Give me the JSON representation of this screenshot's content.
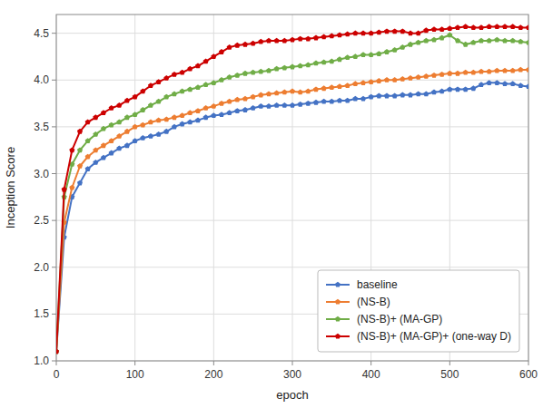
{
  "chart_data": {
    "type": "line",
    "xlabel": "epoch",
    "ylabel": "Inception Score",
    "x": [
      0,
      10,
      20,
      30,
      40,
      50,
      60,
      70,
      80,
      90,
      100,
      110,
      120,
      130,
      140,
      150,
      160,
      170,
      180,
      190,
      200,
      210,
      220,
      230,
      240,
      250,
      260,
      270,
      280,
      290,
      300,
      310,
      320,
      330,
      340,
      350,
      360,
      370,
      380,
      390,
      400,
      410,
      420,
      430,
      440,
      450,
      460,
      470,
      480,
      490,
      500,
      510,
      520,
      530,
      540,
      550,
      560,
      570,
      580,
      590,
      600
    ],
    "series": [
      {
        "name": "baseline",
        "color": "#4472C4",
        "marker": "pentagon",
        "values": [
          1.1,
          2.32,
          2.75,
          2.9,
          3.05,
          3.12,
          3.17,
          3.22,
          3.27,
          3.3,
          3.35,
          3.38,
          3.4,
          3.42,
          3.45,
          3.5,
          3.53,
          3.55,
          3.57,
          3.6,
          3.62,
          3.63,
          3.65,
          3.67,
          3.68,
          3.7,
          3.72,
          3.72,
          3.73,
          3.73,
          3.73,
          3.74,
          3.75,
          3.76,
          3.77,
          3.77,
          3.78,
          3.78,
          3.8,
          3.8,
          3.82,
          3.83,
          3.83,
          3.83,
          3.84,
          3.84,
          3.85,
          3.85,
          3.87,
          3.88,
          3.9,
          3.9,
          3.9,
          3.91,
          3.95,
          3.97,
          3.97,
          3.96,
          3.96,
          3.94,
          3.93
        ]
      },
      {
        "name": "(NS-B)",
        "color": "#ED7D31",
        "marker": "pentagon",
        "values": [
          1.1,
          2.48,
          2.85,
          3.08,
          3.18,
          3.25,
          3.3,
          3.35,
          3.4,
          3.45,
          3.5,
          3.52,
          3.55,
          3.57,
          3.58,
          3.6,
          3.62,
          3.65,
          3.67,
          3.7,
          3.72,
          3.75,
          3.77,
          3.79,
          3.8,
          3.82,
          3.84,
          3.85,
          3.86,
          3.87,
          3.88,
          3.87,
          3.88,
          3.9,
          3.91,
          3.92,
          3.93,
          3.94,
          3.96,
          3.97,
          3.98,
          3.99,
          4.0,
          4.0,
          4.01,
          4.02,
          4.03,
          4.04,
          4.05,
          4.06,
          4.07,
          4.07,
          4.08,
          4.08,
          4.09,
          4.09,
          4.1,
          4.1,
          4.1,
          4.11,
          4.11
        ]
      },
      {
        "name": "(NS-B)+ (MA-GP)",
        "color": "#70AD47",
        "marker": "pentagon",
        "values": [
          1.1,
          2.75,
          3.1,
          3.25,
          3.35,
          3.42,
          3.48,
          3.52,
          3.55,
          3.6,
          3.63,
          3.68,
          3.73,
          3.77,
          3.82,
          3.85,
          3.88,
          3.9,
          3.92,
          3.95,
          3.97,
          4.0,
          4.03,
          4.05,
          4.07,
          4.08,
          4.09,
          4.1,
          4.12,
          4.13,
          4.14,
          4.15,
          4.16,
          4.18,
          4.19,
          4.2,
          4.22,
          4.24,
          4.25,
          4.27,
          4.27,
          4.28,
          4.3,
          4.32,
          4.35,
          4.38,
          4.4,
          4.42,
          4.43,
          4.45,
          4.48,
          4.42,
          4.38,
          4.4,
          4.42,
          4.42,
          4.43,
          4.42,
          4.42,
          4.41,
          4.4
        ]
      },
      {
        "name": "(NS-B)+ (MA-GP)+ (one-way D)",
        "color": "#CC0000",
        "marker": "pentagon",
        "values": [
          1.1,
          2.83,
          3.25,
          3.45,
          3.55,
          3.6,
          3.65,
          3.7,
          3.73,
          3.78,
          3.82,
          3.88,
          3.94,
          3.98,
          4.02,
          4.06,
          4.08,
          4.12,
          4.15,
          4.2,
          4.25,
          4.3,
          4.35,
          4.37,
          4.38,
          4.39,
          4.41,
          4.42,
          4.42,
          4.42,
          4.43,
          4.44,
          4.44,
          4.45,
          4.46,
          4.47,
          4.48,
          4.49,
          4.5,
          4.5,
          4.5,
          4.51,
          4.52,
          4.52,
          4.52,
          4.5,
          4.5,
          4.53,
          4.54,
          4.54,
          4.55,
          4.56,
          4.57,
          4.56,
          4.56,
          4.57,
          4.57,
          4.57,
          4.57,
          4.56,
          4.56
        ]
      }
    ],
    "xlim": [
      0,
      600
    ],
    "ylim": [
      1.0,
      4.7
    ],
    "xticks": [
      0,
      100,
      200,
      300,
      400,
      500,
      600
    ],
    "yticks": [
      {
        "value": 1.0,
        "label": "1.0"
      },
      1.5,
      {
        "value": 2.0,
        "label": "2.0"
      },
      2.5,
      {
        "value": 3.0,
        "label": "3.0"
      },
      3.5,
      {
        "value": 4.0,
        "label": "4.0"
      },
      4.5
    ],
    "grid": true,
    "legend": "lower right"
  }
}
